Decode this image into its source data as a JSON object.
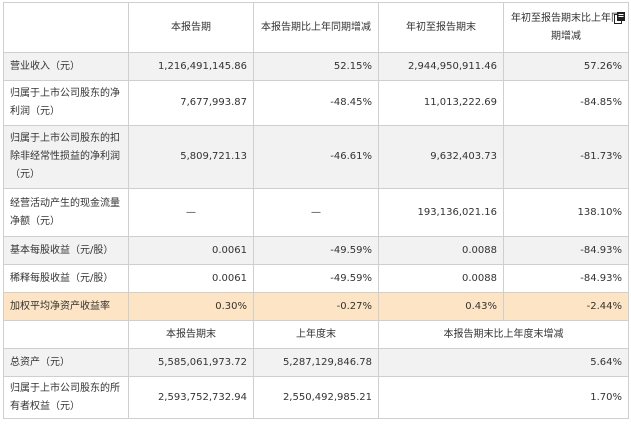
{
  "header": [
    "",
    "本报告期",
    "本报告期比上年同期增减",
    "年初至报告期末",
    "年初至报告期末比上年同期增减"
  ],
  "rows": [
    {
      "label": "营业收入（元）",
      "c1": "1,216,491,145.86",
      "c2": "52.15%",
      "c3": "2,944,950,911.46",
      "c4": "57.26%"
    },
    {
      "label": "归属于上市公司股东的净利润（元）",
      "c1": "7,677,993.87",
      "c2": "-48.45%",
      "c3": "11,013,222.69",
      "c4": "-84.85%"
    },
    {
      "label": "归属于上市公司股东的扣除非经常性损益的净利润（元）",
      "c1": "5,809,721.13",
      "c2": "-46.61%",
      "c3": "9,632,403.73",
      "c4": "-81.73%"
    },
    {
      "label": "经营活动产生的现金流量净额（元）",
      "c1": "—",
      "c2": "—",
      "c3": "193,136,021.16",
      "c4": "138.10%"
    },
    {
      "label": "基本每股收益（元/股）",
      "c1": "0.0061",
      "c2": "-49.59%",
      "c3": "0.0088",
      "c4": "-84.93%"
    },
    {
      "label": "稀释每股收益（元/股）",
      "c1": "0.0061",
      "c2": "-49.59%",
      "c3": "0.0088",
      "c4": "-84.93%"
    },
    {
      "label": "加权平均净资产收益率",
      "c1": "0.30%",
      "c2": "-0.27%",
      "c3": "0.43%",
      "c4": "-2.44%"
    }
  ],
  "subheader": [
    "",
    "本报告期末",
    "上年度末",
    "本报告期末比上年度末增减"
  ],
  "bottom_rows": [
    {
      "label": "总资产（元）",
      "c1": "5,585,061,973.72",
      "c2": "5,287,129,846.78",
      "c3": "5.64%"
    },
    {
      "label": "归属于上市公司股东的所有者权益（元）",
      "c1": "2,593,752,732.94",
      "c2": "2,550,492,985.21",
      "c3": "1.70%"
    }
  ],
  "colors": {
    "highlight_row": "#fce4c4",
    "gray_row": "#f2f2f2",
    "border": "#cfcfcf"
  },
  "icons": {
    "header_icon": "copy-icon"
  }
}
